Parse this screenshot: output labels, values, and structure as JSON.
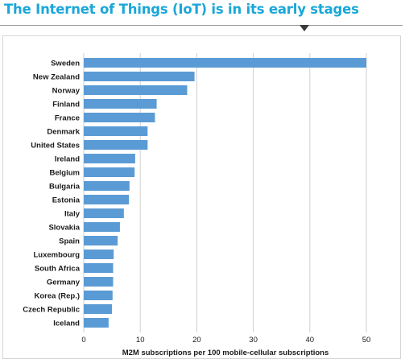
{
  "title": "The Internet of Things (IoT) is in its early stages",
  "chart_data": {
    "type": "bar",
    "orientation": "horizontal",
    "title": "",
    "xlabel": "M2M subscriptions per 100 mobile-cellular subscriptions",
    "ylabel": "",
    "xlim": [
      0,
      50
    ],
    "xticks": [
      0,
      10,
      20,
      30,
      40,
      50
    ],
    "grid": true,
    "bar_color": "#5b9bd5",
    "grid_color": "#cfcfcf",
    "categories": [
      "Sweden",
      "New Zealand",
      "Norway",
      "Finland",
      "France",
      "Denmark",
      "United States",
      "Ireland",
      "Belgium",
      "Bulgaria",
      "Estonia",
      "Italy",
      "Slovakia",
      "Spain",
      "Luxembourg",
      "South Africa",
      "Germany",
      "Korea (Rep.)",
      "Czech Republic",
      "Iceland"
    ],
    "values": [
      50.0,
      19.6,
      18.3,
      12.9,
      12.6,
      11.3,
      11.3,
      9.1,
      9.0,
      8.1,
      8.0,
      7.1,
      6.4,
      6.0,
      5.3,
      5.2,
      5.2,
      5.1,
      5.0,
      4.4
    ]
  }
}
